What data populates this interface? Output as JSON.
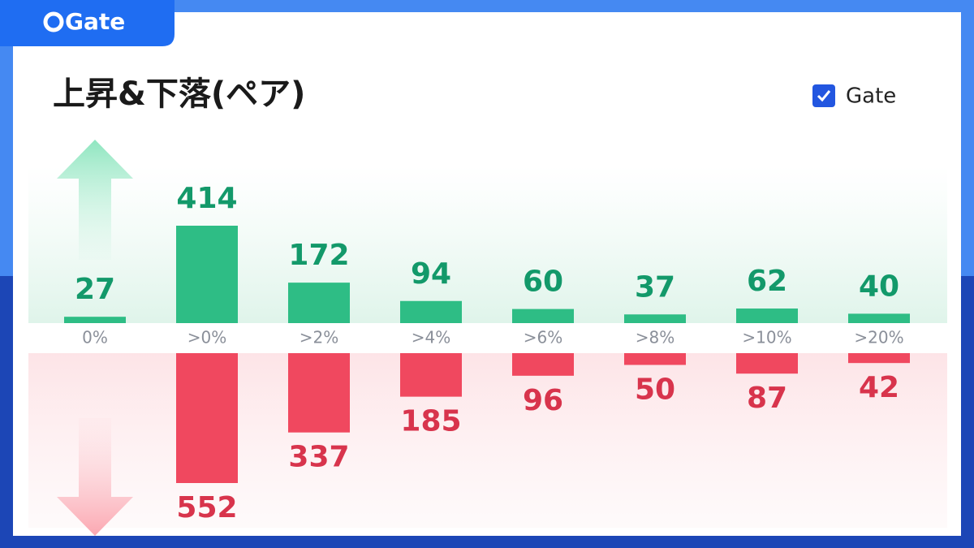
{
  "chart_data": {
    "type": "diverging-bar",
    "brand": "Gate",
    "title": "上昇&下落(ペア)",
    "legend": "Gate",
    "categories": [
      "0%",
      ">0%",
      ">2%",
      ">4%",
      ">6%",
      ">8%",
      ">10%",
      ">20%"
    ],
    "series": [
      {
        "name": "上昇",
        "color": "#2ebd85",
        "label_color": "#13996a",
        "values": [
          27,
          414,
          172,
          94,
          60,
          37,
          62,
          40
        ]
      },
      {
        "name": "下落",
        "color": "#f0485f",
        "label_color": "#d8344c",
        "values": [
          null,
          552,
          337,
          185,
          96,
          50,
          87,
          42
        ]
      }
    ]
  }
}
